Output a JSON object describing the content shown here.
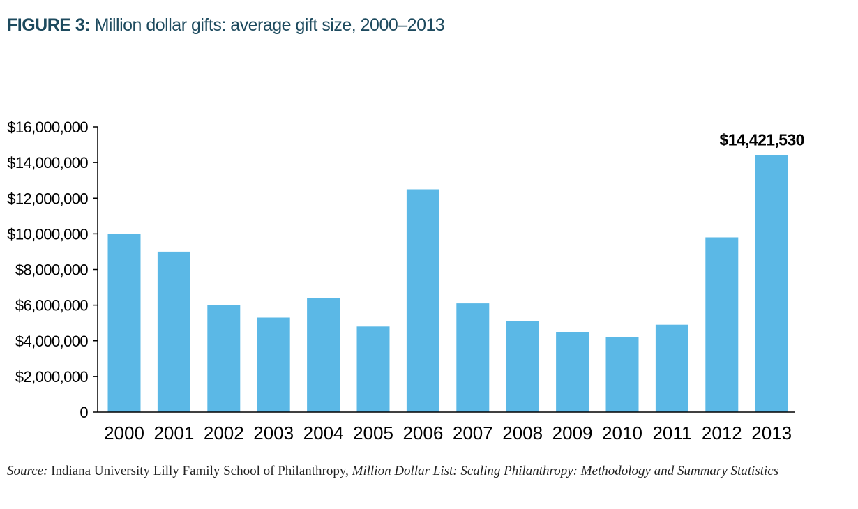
{
  "figure": {
    "label": "FIGURE 3:",
    "title": "Million dollar gifts: average gift size, 2000–2013"
  },
  "source": {
    "prefix": "Source:",
    "org": " Indiana University Lilly Family School of Philanthropy, ",
    "work": "Million Dollar List: Scaling Philanthropy: Methodology and Summary Statistics"
  },
  "colors": {
    "bar": "#5bb8e6",
    "axis": "#000000",
    "title": "#1d4a5e"
  },
  "chart_data": {
    "type": "bar",
    "title": "Million dollar gifts: average gift size, 2000–2013",
    "xlabel": "",
    "ylabel": "",
    "categories": [
      "2000",
      "2001",
      "2002",
      "2003",
      "2004",
      "2005",
      "2006",
      "2007",
      "2008",
      "2009",
      "2010",
      "2011",
      "2012",
      "2013"
    ],
    "values": [
      10000000,
      9000000,
      6000000,
      5300000,
      6400000,
      4800000,
      12500000,
      6100000,
      5100000,
      4500000,
      4200000,
      4900000,
      9800000,
      14421530
    ],
    "ylim": [
      0,
      16000000
    ],
    "yticks": [
      0,
      2000000,
      4000000,
      6000000,
      8000000,
      10000000,
      12000000,
      14000000,
      16000000
    ],
    "ytick_labels": [
      "0",
      "$2,000,000",
      "$4,000,000",
      "$6,000,000",
      "$8,000,000",
      "$10,000,000",
      "$12,000,000",
      "$14,000,000",
      "$16,000,000"
    ],
    "annotations": [
      {
        "category": "2013",
        "text": "$14,421,530"
      }
    ],
    "grid": false,
    "legend": "none"
  }
}
